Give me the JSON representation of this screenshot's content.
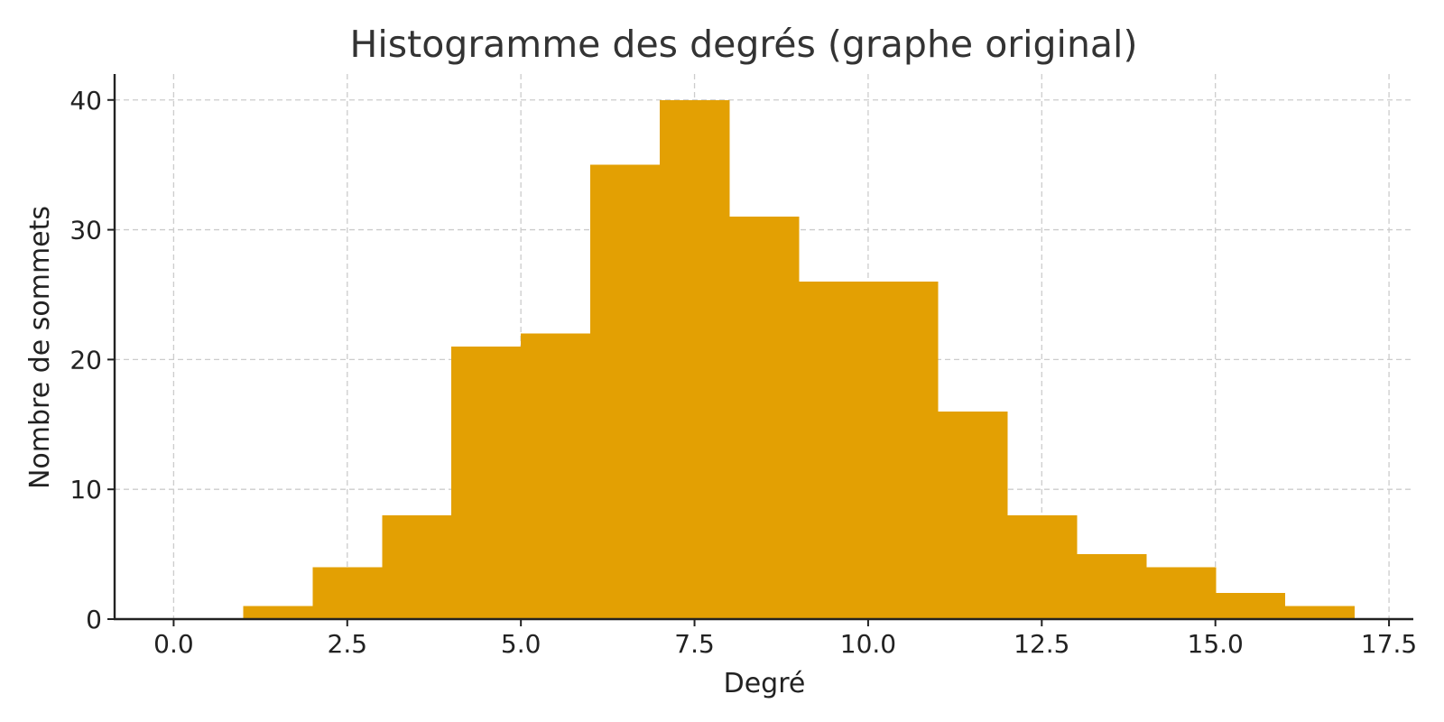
{
  "chart_data": {
    "type": "bar",
    "subtype": "histogram",
    "title": "Histogramme des degrés (graphe original)",
    "xlabel": "Degré",
    "ylabel": "Nombre de sommets",
    "bins": [
      {
        "start": 1,
        "end": 2,
        "value": 1
      },
      {
        "start": 2,
        "end": 3,
        "value": 4
      },
      {
        "start": 3,
        "end": 4,
        "value": 8
      },
      {
        "start": 4,
        "end": 5,
        "value": 21
      },
      {
        "start": 5,
        "end": 6,
        "value": 22
      },
      {
        "start": 6,
        "end": 7,
        "value": 35
      },
      {
        "start": 7,
        "end": 8,
        "value": 40
      },
      {
        "start": 8,
        "end": 9,
        "value": 31
      },
      {
        "start": 9,
        "end": 10,
        "value": 26
      },
      {
        "start": 10,
        "end": 11,
        "value": 26
      },
      {
        "start": 11,
        "end": 12,
        "value": 16
      },
      {
        "start": 12,
        "end": 13,
        "value": 8
      },
      {
        "start": 13,
        "end": 14,
        "value": 5
      },
      {
        "start": 14,
        "end": 15,
        "value": 4
      },
      {
        "start": 15,
        "end": 16,
        "value": 2
      },
      {
        "start": 16,
        "end": 17,
        "value": 1
      }
    ],
    "xlim": [
      -0.85,
      17.85
    ],
    "ylim": [
      0,
      42
    ],
    "xticks": [
      0,
      2.5,
      5,
      7.5,
      10,
      12.5,
      15,
      17.5
    ],
    "xtick_labels": [
      "0.0",
      "2.5",
      "5.0",
      "7.5",
      "10.0",
      "12.5",
      "15.0",
      "17.5"
    ],
    "yticks": [
      0,
      10,
      20,
      30,
      40
    ],
    "ytick_labels": [
      "0",
      "10",
      "20",
      "30",
      "40"
    ],
    "grid": true,
    "bar_color": "#E3A003"
  }
}
